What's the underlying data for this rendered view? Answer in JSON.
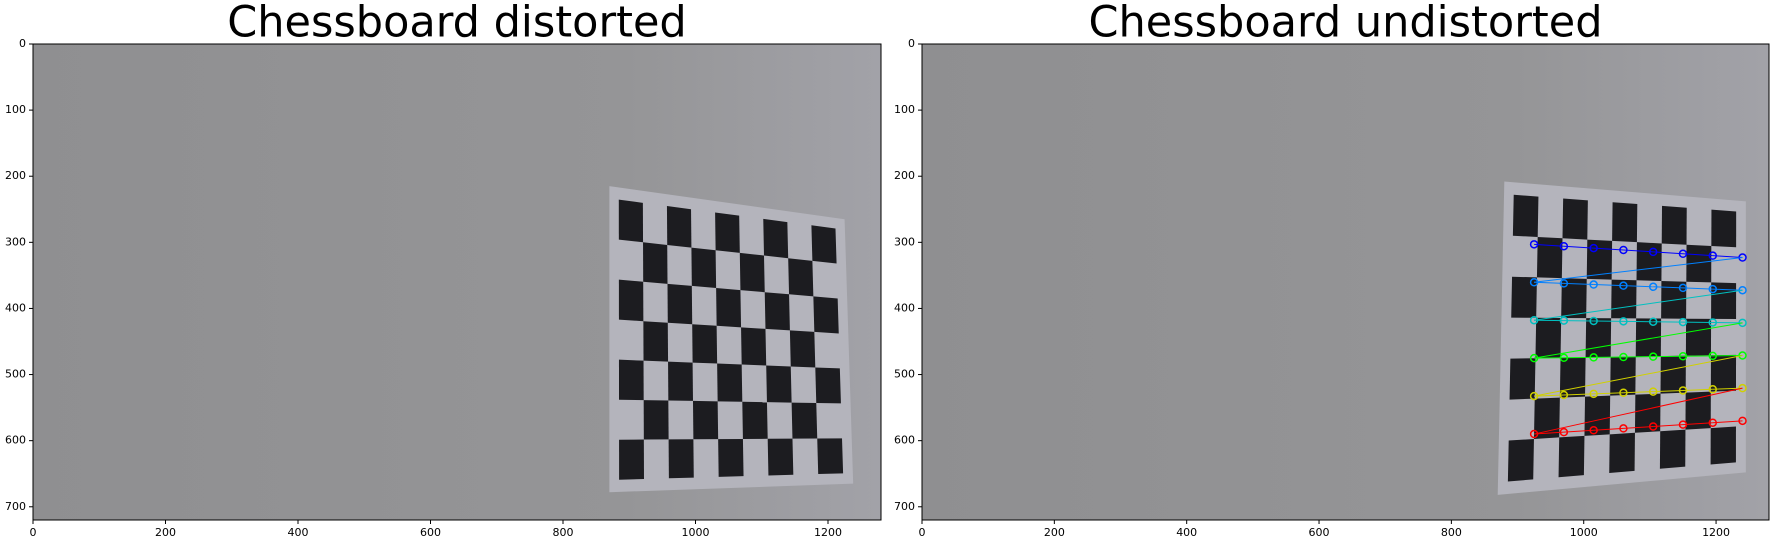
{
  "chart_data": [
    {
      "type": "image",
      "title": "Chessboard distorted",
      "xlim": [
        0,
        1280
      ],
      "ylim": [
        720,
        0
      ],
      "xticks": [
        0,
        200,
        400,
        600,
        800,
        1000,
        1200
      ],
      "yticks": [
        0,
        100,
        200,
        300,
        400,
        500,
        600,
        700
      ]
    },
    {
      "type": "image",
      "title": "Chessboard undistorted",
      "xlim": [
        0,
        1280
      ],
      "ylim": [
        720,
        0
      ],
      "xticks": [
        0,
        200,
        400,
        600,
        800,
        1000,
        1200
      ],
      "yticks": [
        0,
        100,
        200,
        300,
        400,
        500,
        600,
        700
      ]
    }
  ]
}
